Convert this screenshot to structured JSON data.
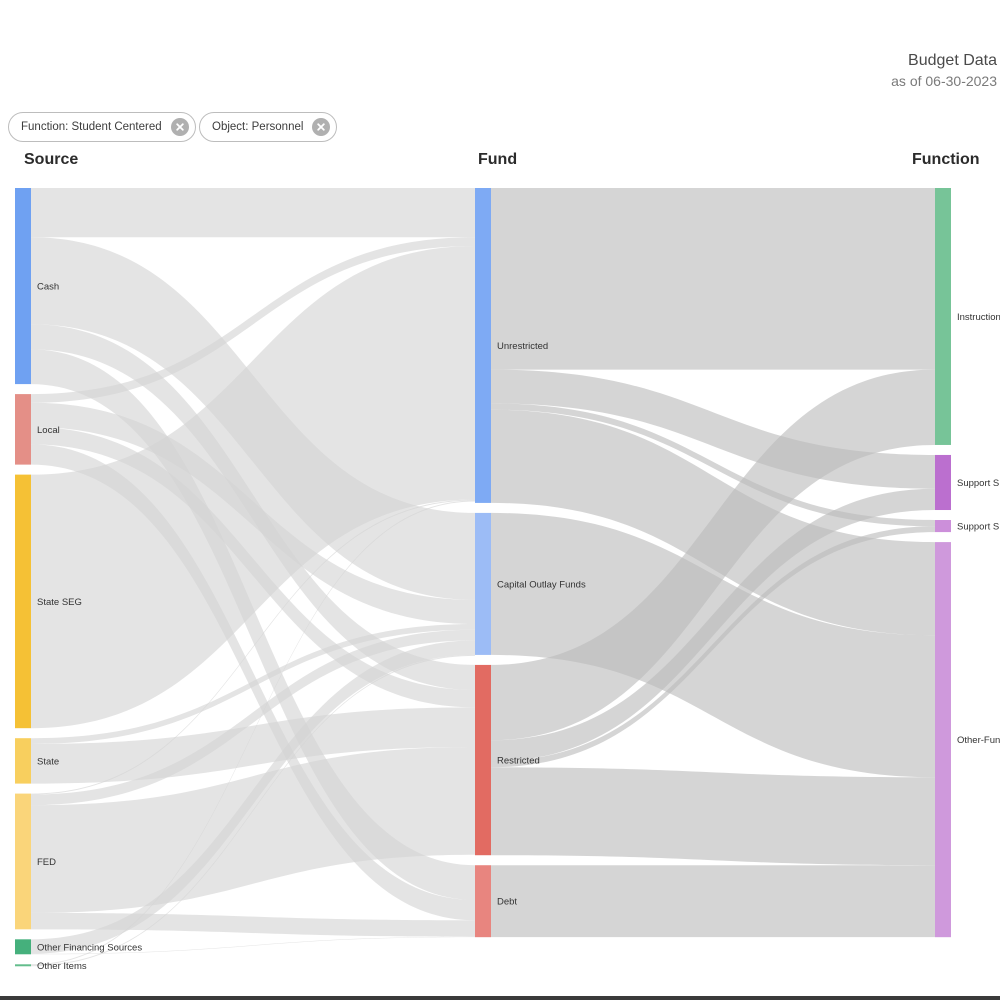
{
  "header": {
    "title": "Budget Data",
    "subtitle": "as of 06-30-2023"
  },
  "filters": [
    {
      "label": "Function: Student Centered"
    },
    {
      "label": "Object: Personnel"
    }
  ],
  "colors": {
    "link": "#d4d4d4",
    "link_dark": "#bcbcbc",
    "link_opacity": 0.62,
    "background": "#ffffff"
  },
  "chart_data": {
    "type": "sankey",
    "columns": [
      "Source",
      "Fund",
      "Function"
    ],
    "nodes": [
      {
        "id": "cash",
        "label": "Cash",
        "column": 0,
        "value": 40.6,
        "color": "#6fa1f2"
      },
      {
        "id": "local",
        "label": "Local",
        "column": 0,
        "value": 14.6,
        "color": "#e48f87"
      },
      {
        "id": "stateseg",
        "label": "State SEG",
        "column": 0,
        "value": 52.5,
        "color": "#f5c135"
      },
      {
        "id": "state",
        "label": "State",
        "column": 0,
        "value": 9.4,
        "color": "#f8cf5e"
      },
      {
        "id": "fed",
        "label": "FED",
        "column": 0,
        "value": 28.1,
        "color": "#fad57a"
      },
      {
        "id": "ofs",
        "label": "Other Financing Sources",
        "column": 0,
        "value": 3.1,
        "color": "#45b07c"
      },
      {
        "id": "oi",
        "label": "Other Items",
        "column": 0,
        "value": 0.4,
        "color": "#63bd8c"
      },
      {
        "id": "unres",
        "label": "Unrestricted",
        "column": 1,
        "value": 65.2,
        "color": "#7eaaf4"
      },
      {
        "id": "capout",
        "label": "Capital Outlay Funds",
        "column": 1,
        "value": 29.4,
        "color": "#9cbcf6"
      },
      {
        "id": "restr",
        "label": "Restricted",
        "column": 1,
        "value": 39.4,
        "color": "#e26b62"
      },
      {
        "id": "debt",
        "label": "Debt",
        "column": 1,
        "value": 14.9,
        "color": "#e8857f"
      },
      {
        "id": "instr",
        "label": "Instruction",
        "column": 2,
        "value": 53.2,
        "color": "#77c498"
      },
      {
        "id": "ss1",
        "label": "Support S",
        "column": 2,
        "value": 11.4,
        "color": "#bb6fcf"
      },
      {
        "id": "ss2",
        "label": "Support S",
        "column": 2,
        "value": 2.5,
        "color": "#cc8fda"
      },
      {
        "id": "other",
        "label": "Other-Fun",
        "column": 2,
        "value": 81.8,
        "color": "#cf99dc"
      }
    ],
    "links": [
      {
        "source": "cash",
        "target": "unres",
        "value": 10.2
      },
      {
        "source": "cash",
        "target": "capout",
        "value": 18.0
      },
      {
        "source": "cash",
        "target": "restr",
        "value": 5.2
      },
      {
        "source": "cash",
        "target": "debt",
        "value": 7.2
      },
      {
        "source": "local",
        "target": "unres",
        "value": 1.8
      },
      {
        "source": "local",
        "target": "capout",
        "value": 5.0
      },
      {
        "source": "local",
        "target": "restr",
        "value": 3.6
      },
      {
        "source": "local",
        "target": "debt",
        "value": 4.2
      },
      {
        "source": "stateseg",
        "target": "unres",
        "value": 52.5
      },
      {
        "source": "state",
        "target": "capout",
        "value": 1.2
      },
      {
        "source": "state",
        "target": "restr",
        "value": 8.2
      },
      {
        "source": "fed",
        "target": "unres",
        "value": 0.2
      },
      {
        "source": "fed",
        "target": "capout",
        "value": 2.2
      },
      {
        "source": "fed",
        "target": "restr",
        "value": 22.3
      },
      {
        "source": "fed",
        "target": "debt",
        "value": 3.4
      },
      {
        "source": "ofs",
        "target": "capout",
        "value": 3.0
      },
      {
        "source": "ofs",
        "target": "debt",
        "value": 0.1
      },
      {
        "source": "oi",
        "target": "unres",
        "value": 0.2
      },
      {
        "source": "oi",
        "target": "capout",
        "value": 0.2
      },
      {
        "source": "unres",
        "target": "instr",
        "value": 37.6
      },
      {
        "source": "unres",
        "target": "ss1",
        "value": 7.0
      },
      {
        "source": "unres",
        "target": "ss2",
        "value": 1.3
      },
      {
        "source": "unres",
        "target": "other",
        "value": 19.3
      },
      {
        "source": "capout",
        "target": "other",
        "value": 29.4
      },
      {
        "source": "restr",
        "target": "instr",
        "value": 15.6
      },
      {
        "source": "restr",
        "target": "ss1",
        "value": 4.4
      },
      {
        "source": "restr",
        "target": "ss2",
        "value": 1.2
      },
      {
        "source": "restr",
        "target": "other",
        "value": 18.2
      },
      {
        "source": "debt",
        "target": "other",
        "value": 14.9
      }
    ]
  }
}
